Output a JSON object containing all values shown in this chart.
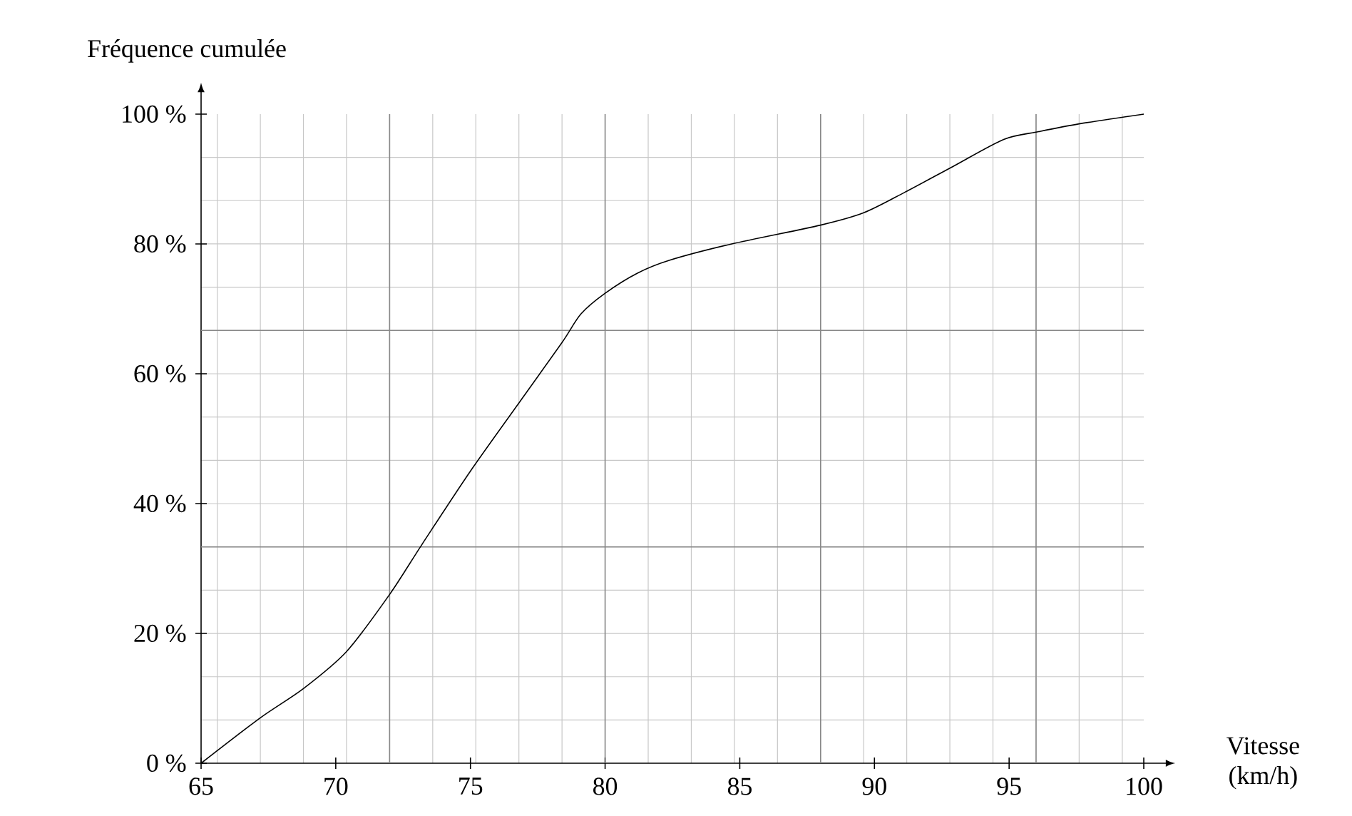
{
  "chart_data": {
    "type": "line",
    "xlabel": "Vitesse (km/h)",
    "ylabel": "Fréquence cumulée",
    "x": [
      65,
      67.2,
      68.8,
      70.4,
      72,
      73.2,
      75,
      76.8,
      78.4,
      79.1,
      80,
      81.2,
      82.4,
      84.7,
      88,
      89.6,
      91.1,
      92.9,
      94.8,
      96.1,
      97.6,
      100
    ],
    "series": [
      {
        "color": "#000000",
        "values": [
          0,
          7,
          11.5,
          17.2,
          26,
          33.7,
          45,
          55.5,
          64.8,
          69.2,
          72.4,
          75.5,
          77.5,
          80,
          82.9,
          84.8,
          87.9,
          91.9,
          96.1,
          97.3,
          98.5,
          100
        ]
      }
    ],
    "xlim": [
      65,
      100
    ],
    "ylim": [
      0,
      100
    ],
    "xticks": [
      65,
      70,
      75,
      80,
      85,
      90,
      95,
      100
    ],
    "yticks": [
      {
        "value": 0,
        "label": "0 %"
      },
      {
        "value": 20,
        "label": "20 %"
      },
      {
        "value": 40,
        "label": "40 %"
      },
      {
        "value": 60,
        "label": "60 %"
      },
      {
        "value": 80,
        "label": "80 %"
      },
      {
        "value": 100,
        "label": "100 %"
      }
    ],
    "grid": true,
    "marker": "none",
    "line_style": "solid",
    "ref_lines": [
      {
        "axis": "x",
        "value": 72,
        "color": "#888888"
      },
      {
        "axis": "x",
        "value": 80,
        "color": "#888888"
      },
      {
        "axis": "x",
        "value": 88,
        "color": "#888888"
      },
      {
        "axis": "x",
        "value": 96,
        "color": "#888888"
      },
      {
        "axis": "y",
        "value": 33.33,
        "color": "#888888"
      },
      {
        "axis": "y",
        "value": 66.67,
        "color": "#888888"
      }
    ]
  }
}
